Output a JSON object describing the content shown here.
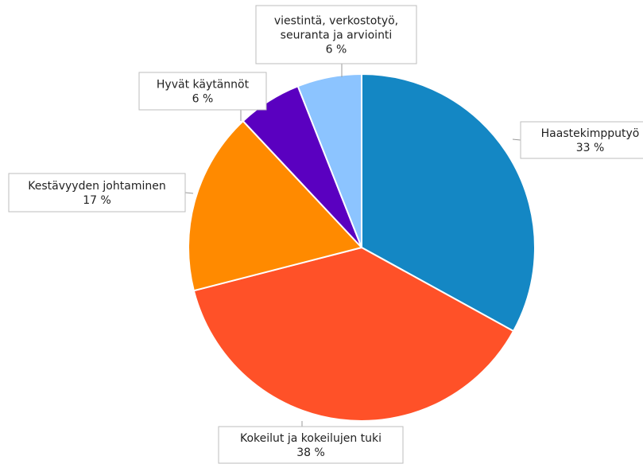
{
  "chart_data": {
    "type": "pie",
    "title": "",
    "start_angle_deg": 0,
    "direction": "clockwise",
    "slices": [
      {
        "label": "Haastekimpputyö",
        "value": 33,
        "value_label": "33 %",
        "color": "#1487c4"
      },
      {
        "label": "Kokeilut ja kokeilujen tuki",
        "value": 38,
        "value_label": "38 %",
        "color": "#ff5128"
      },
      {
        "label": "Kestävyyden johtaminen",
        "value": 17,
        "value_label": "17 %",
        "color": "#ff8a00"
      },
      {
        "label": "Hyvät käytännöt",
        "value": 6,
        "value_label": "6 %",
        "color": "#5a00c0"
      },
      {
        "label": "viestintä, verkostotyö, seuranta ja arviointi",
        "value": 6,
        "value_label": "6 %",
        "color": "#8cc4ff"
      }
    ],
    "label_lines": [
      [
        "Haastekimpputyö",
        "33 %"
      ],
      [
        "Kokeilut ja kokeilujen tuki",
        "38 %"
      ],
      [
        "Kestävyyden johtaminen",
        "17 %"
      ],
      [
        "Hyvät käytännöt",
        "6 %"
      ],
      [
        "viestintä, verkostotyö,",
        "seuranta ja arviointi",
        "6 %"
      ]
    ],
    "legend": "none"
  }
}
